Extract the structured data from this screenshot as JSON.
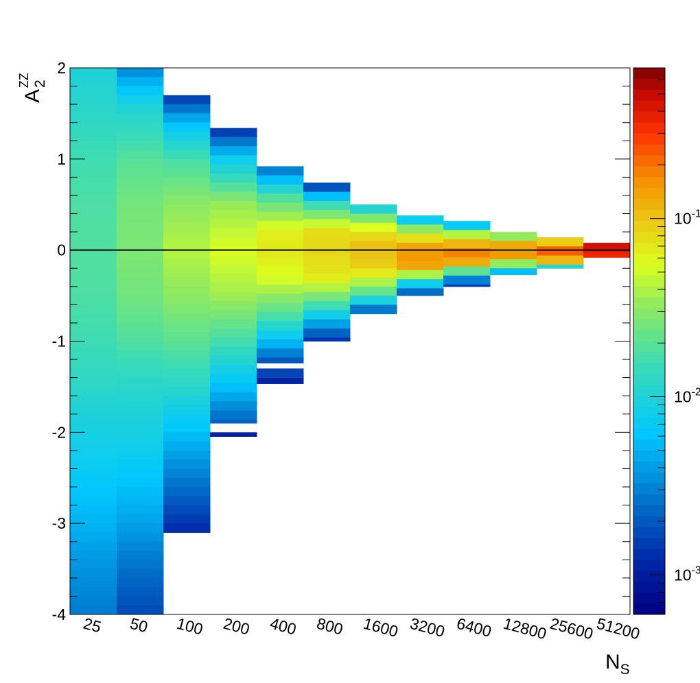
{
  "chart_data": {
    "type": "heatmap",
    "title": "",
    "xlabel": {
      "main": "N",
      "sub": "S"
    },
    "ylabel": {
      "main": "A",
      "sup": "ZZ",
      "sub": "2"
    },
    "x_categories": [
      "25",
      "50",
      "100",
      "200",
      "400",
      "800",
      "1600",
      "3200",
      "6400",
      "12800",
      "25600",
      "51200"
    ],
    "ylim": [
      -4,
      2
    ],
    "y_ticks": [
      2,
      1,
      0,
      -1,
      -2,
      -3,
      -4
    ],
    "y_tick_labels": [
      "2",
      "1",
      "0",
      "-1",
      "-2",
      "-3",
      "-4"
    ],
    "y_bin_width": 0.1,
    "reference_line_y": 0,
    "grid": false,
    "colorbar": {
      "scale": "log",
      "range": [
        0.0006,
        0.7
      ],
      "tick_base": [
        "10",
        "10",
        "10"
      ],
      "tick_exp": [
        "-1",
        "-2",
        "-3"
      ],
      "tick_values": [
        0.1,
        0.01,
        0.001
      ]
    },
    "columns": [
      {
        "n": "25",
        "profile": [
          [
            2.0,
            0.0097
          ],
          [
            1.5,
            0.012
          ],
          [
            1.0,
            0.0158
          ],
          [
            0.5,
            0.0179
          ],
          [
            0.0,
            0.0185
          ],
          [
            -0.5,
            0.0178
          ],
          [
            -1.0,
            0.0154
          ],
          [
            -1.5,
            0.0121
          ],
          [
            -1.8,
            0.0097
          ],
          [
            -2.3,
            0.0075
          ],
          [
            -3.0,
            0.005
          ],
          [
            -3.5,
            0.0036
          ],
          [
            -4.0,
            0.0028
          ]
        ]
      },
      {
        "n": "50",
        "profile": [
          [
            2.0,
            0.003
          ],
          [
            1.8,
            0.0058
          ],
          [
            1.5,
            0.0112
          ],
          [
            1.0,
            0.0195
          ],
          [
            0.5,
            0.025
          ],
          [
            0.0,
            0.027
          ],
          [
            -0.5,
            0.0245
          ],
          [
            -1.0,
            0.0185
          ],
          [
            -1.5,
            0.0115
          ],
          [
            -2.0,
            0.0088
          ],
          [
            -2.5,
            0.0062
          ],
          [
            -3.0,
            0.0042
          ],
          [
            -3.5,
            0.0025
          ],
          [
            -4.0,
            0.0017
          ]
        ]
      },
      {
        "n": "100",
        "profile": [
          [
            1.7,
            0.0013
          ],
          [
            1.4,
            0.0056
          ],
          [
            1.0,
            0.0168
          ],
          [
            0.5,
            0.031
          ],
          [
            0.0,
            0.042
          ],
          [
            -0.5,
            0.031
          ],
          [
            -1.0,
            0.0205
          ],
          [
            -1.5,
            0.0118
          ],
          [
            -2.0,
            0.0058
          ],
          [
            -2.5,
            0.0029
          ],
          [
            -3.1,
            0.0012
          ]
        ]
      },
      {
        "n": "200",
        "profile": [
          [
            1.34,
            0.0012
          ],
          [
            1.0,
            0.0075
          ],
          [
            0.5,
            0.034
          ],
          [
            0.0,
            0.055
          ],
          [
            -0.5,
            0.036
          ],
          [
            -1.0,
            0.0165
          ],
          [
            -1.5,
            0.0058
          ],
          [
            -1.9,
            0.0021
          ]
        ]
      },
      {
        "n": "400",
        "profile": [
          [
            0.92,
            0.0022
          ],
          [
            0.6,
            0.017
          ],
          [
            0.2,
            0.064
          ],
          [
            0.0,
            0.07
          ],
          [
            -0.3,
            0.055
          ],
          [
            -0.7,
            0.019
          ],
          [
            -1.0,
            0.0058
          ],
          [
            -1.24,
            0.0017
          ]
        ]
      },
      {
        "n": "800",
        "profile": [
          [
            0.74,
            0.0011
          ],
          [
            0.5,
            0.015
          ],
          [
            0.2,
            0.078
          ],
          [
            0.0,
            0.083
          ],
          [
            -0.3,
            0.07
          ],
          [
            -0.6,
            0.017
          ],
          [
            -1.0,
            0.0012
          ]
        ]
      },
      {
        "n": "1600",
        "profile": [
          [
            0.5,
            0.0068
          ],
          [
            0.3,
            0.045
          ],
          [
            0.1,
            0.1
          ],
          [
            0.0,
            0.105
          ],
          [
            -0.2,
            0.09
          ],
          [
            -0.5,
            0.017
          ],
          [
            -0.7,
            0.0015
          ]
        ]
      },
      {
        "n": "3200",
        "profile": [
          [
            0.38,
            0.0035
          ],
          [
            0.2,
            0.05
          ],
          [
            0.0,
            0.16
          ],
          [
            -0.2,
            0.13
          ],
          [
            -0.35,
            0.01
          ],
          [
            -0.5,
            0.0014
          ]
        ]
      },
      {
        "n": "6400",
        "profile": [
          [
            0.32,
            0.0028
          ],
          [
            0.15,
            0.06
          ],
          [
            0.0,
            0.2
          ],
          [
            -0.15,
            0.12
          ],
          [
            -0.3,
            0.0045
          ],
          [
            -0.4,
            0.0012
          ]
        ]
      },
      {
        "n": "12800",
        "profile": [
          [
            0.2,
            0.016
          ],
          [
            0.1,
            0.068
          ],
          [
            0.0,
            0.24
          ],
          [
            -0.1,
            0.09
          ],
          [
            -0.27,
            0.0028
          ]
        ]
      },
      {
        "n": "25600",
        "profile": [
          [
            0.14,
            0.036
          ],
          [
            0.05,
            0.19
          ],
          [
            0.0,
            0.24
          ],
          [
            -0.1,
            0.16
          ],
          [
            -0.2,
            0.0055
          ]
        ]
      },
      {
        "n": "51200",
        "profile": [
          [
            0.08,
            0.16
          ],
          [
            0.03,
            0.45
          ],
          [
            0.0,
            0.62
          ],
          [
            -0.04,
            0.45
          ],
          [
            -0.08,
            0.16
          ]
        ]
      }
    ],
    "separate_blocks": [
      {
        "n": "400",
        "y_from": -1.4,
        "y_to": -1.3,
        "value": 0.0016
      },
      {
        "n": "400",
        "y_from": -1.47,
        "y_to": -1.4,
        "value": 0.0011
      },
      {
        "n": "200",
        "y_from": -2.05,
        "y_to": -2.0,
        "value": 0.0011
      }
    ]
  }
}
